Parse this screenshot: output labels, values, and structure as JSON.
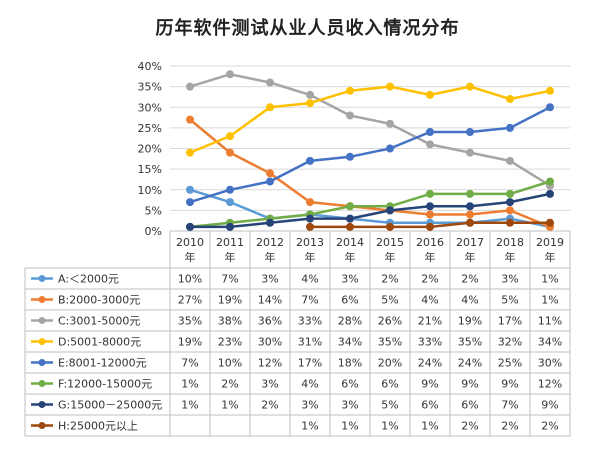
{
  "title": "历年软件测试从业人员收入情况分布",
  "chart_data": {
    "type": "line",
    "title": "历年软件测试从业人员收入情况分布",
    "categories": [
      "2010年",
      "2011年",
      "2012年",
      "2013年",
      "2014年",
      "2015年",
      "2016年",
      "2017年",
      "2018年",
      "2019年"
    ],
    "y_ticks": [
      "0%",
      "5%",
      "10%",
      "15%",
      "20%",
      "25%",
      "30%",
      "35%",
      "40%"
    ],
    "ylim": [
      0,
      40
    ],
    "unit": "%",
    "grid": true,
    "legend_placement": "data-table-below",
    "series": [
      {
        "name": "A:＜2000元",
        "color": "#5B9BD5",
        "values": [
          10,
          7,
          3,
          4,
          3,
          2,
          2,
          2,
          3,
          1
        ],
        "labels": [
          "10%",
          "7%",
          "3%",
          "4%",
          "3%",
          "2%",
          "2%",
          "2%",
          "3%",
          "1%"
        ]
      },
      {
        "name": "B:2000-3000元",
        "color": "#ED7D31",
        "values": [
          27,
          19,
          14,
          7,
          6,
          5,
          4,
          4,
          5,
          1
        ],
        "labels": [
          "27%",
          "19%",
          "14%",
          "7%",
          "6%",
          "5%",
          "4%",
          "4%",
          "5%",
          "1%"
        ]
      },
      {
        "name": "C:3001-5000元",
        "color": "#A5A5A5",
        "values": [
          35,
          38,
          36,
          33,
          28,
          26,
          21,
          19,
          17,
          11
        ],
        "labels": [
          "35%",
          "38%",
          "36%",
          "33%",
          "28%",
          "26%",
          "21%",
          "19%",
          "17%",
          "11%"
        ]
      },
      {
        "name": "D:5001-8000元",
        "color": "#FFC000",
        "values": [
          19,
          23,
          30,
          31,
          34,
          35,
          33,
          35,
          32,
          34
        ],
        "labels": [
          "19%",
          "23%",
          "30%",
          "31%",
          "34%",
          "35%",
          "33%",
          "35%",
          "32%",
          "34%"
        ]
      },
      {
        "name": "E:8001-12000元",
        "color": "#4472C4",
        "values": [
          7,
          10,
          12,
          17,
          18,
          20,
          24,
          24,
          25,
          30
        ],
        "labels": [
          "7%",
          "10%",
          "12%",
          "17%",
          "18%",
          "20%",
          "24%",
          "24%",
          "25%",
          "30%"
        ]
      },
      {
        "name": "F:12000-15000元",
        "color": "#70AD47",
        "values": [
          1,
          2,
          3,
          4,
          6,
          6,
          9,
          9,
          9,
          12
        ],
        "labels": [
          "1%",
          "2%",
          "3%",
          "4%",
          "6%",
          "6%",
          "9%",
          "9%",
          "9%",
          "12%"
        ]
      },
      {
        "name": "G:15000－25000元",
        "color": "#264478",
        "values": [
          1,
          1,
          2,
          3,
          3,
          5,
          6,
          6,
          7,
          9
        ],
        "labels": [
          "1%",
          "1%",
          "2%",
          "3%",
          "3%",
          "5%",
          "6%",
          "6%",
          "7%",
          "9%"
        ]
      },
      {
        "name": "H:25000元以上",
        "color": "#9E480E",
        "values": [
          null,
          null,
          null,
          1,
          1,
          1,
          1,
          2,
          2,
          2
        ],
        "labels": [
          "",
          "",
          "",
          "1%",
          "1%",
          "1%",
          "1%",
          "2%",
          "2%",
          "2%"
        ]
      }
    ]
  }
}
